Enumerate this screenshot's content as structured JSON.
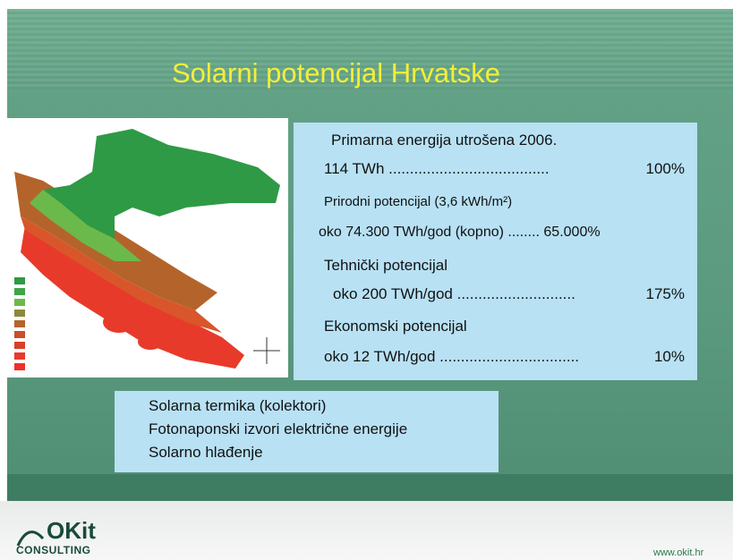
{
  "title": "Solarni potencijal Hrvatske",
  "info_box": {
    "lines": [
      {
        "text": "Primarna energija utrošena 2006."
      },
      {
        "text": "114 TWh ......................................",
        "value": "100%"
      },
      {
        "text": "Prirodni potencijal (3,6 kWh/m²)"
      },
      {
        "text": "oko 74.300 TWh/god (kopno) ........ 65.000%"
      },
      {
        "text": "Tehnički potencijal"
      },
      {
        "text": "oko 200 TWh/god ............................",
        "value": "175%"
      },
      {
        "text": "Ekonomski potencijal"
      },
      {
        "text": "oko 12 TWh/god .................................",
        "value": "10%"
      }
    ]
  },
  "list": [
    "Solarna termika (kolektori)",
    "Fotonaponski izvori električne energije",
    "Solarno hlađenje"
  ],
  "footer": {
    "logo_name": "OKit",
    "logo_sub": "CONSULTING",
    "url": "www.okit.hr"
  }
}
